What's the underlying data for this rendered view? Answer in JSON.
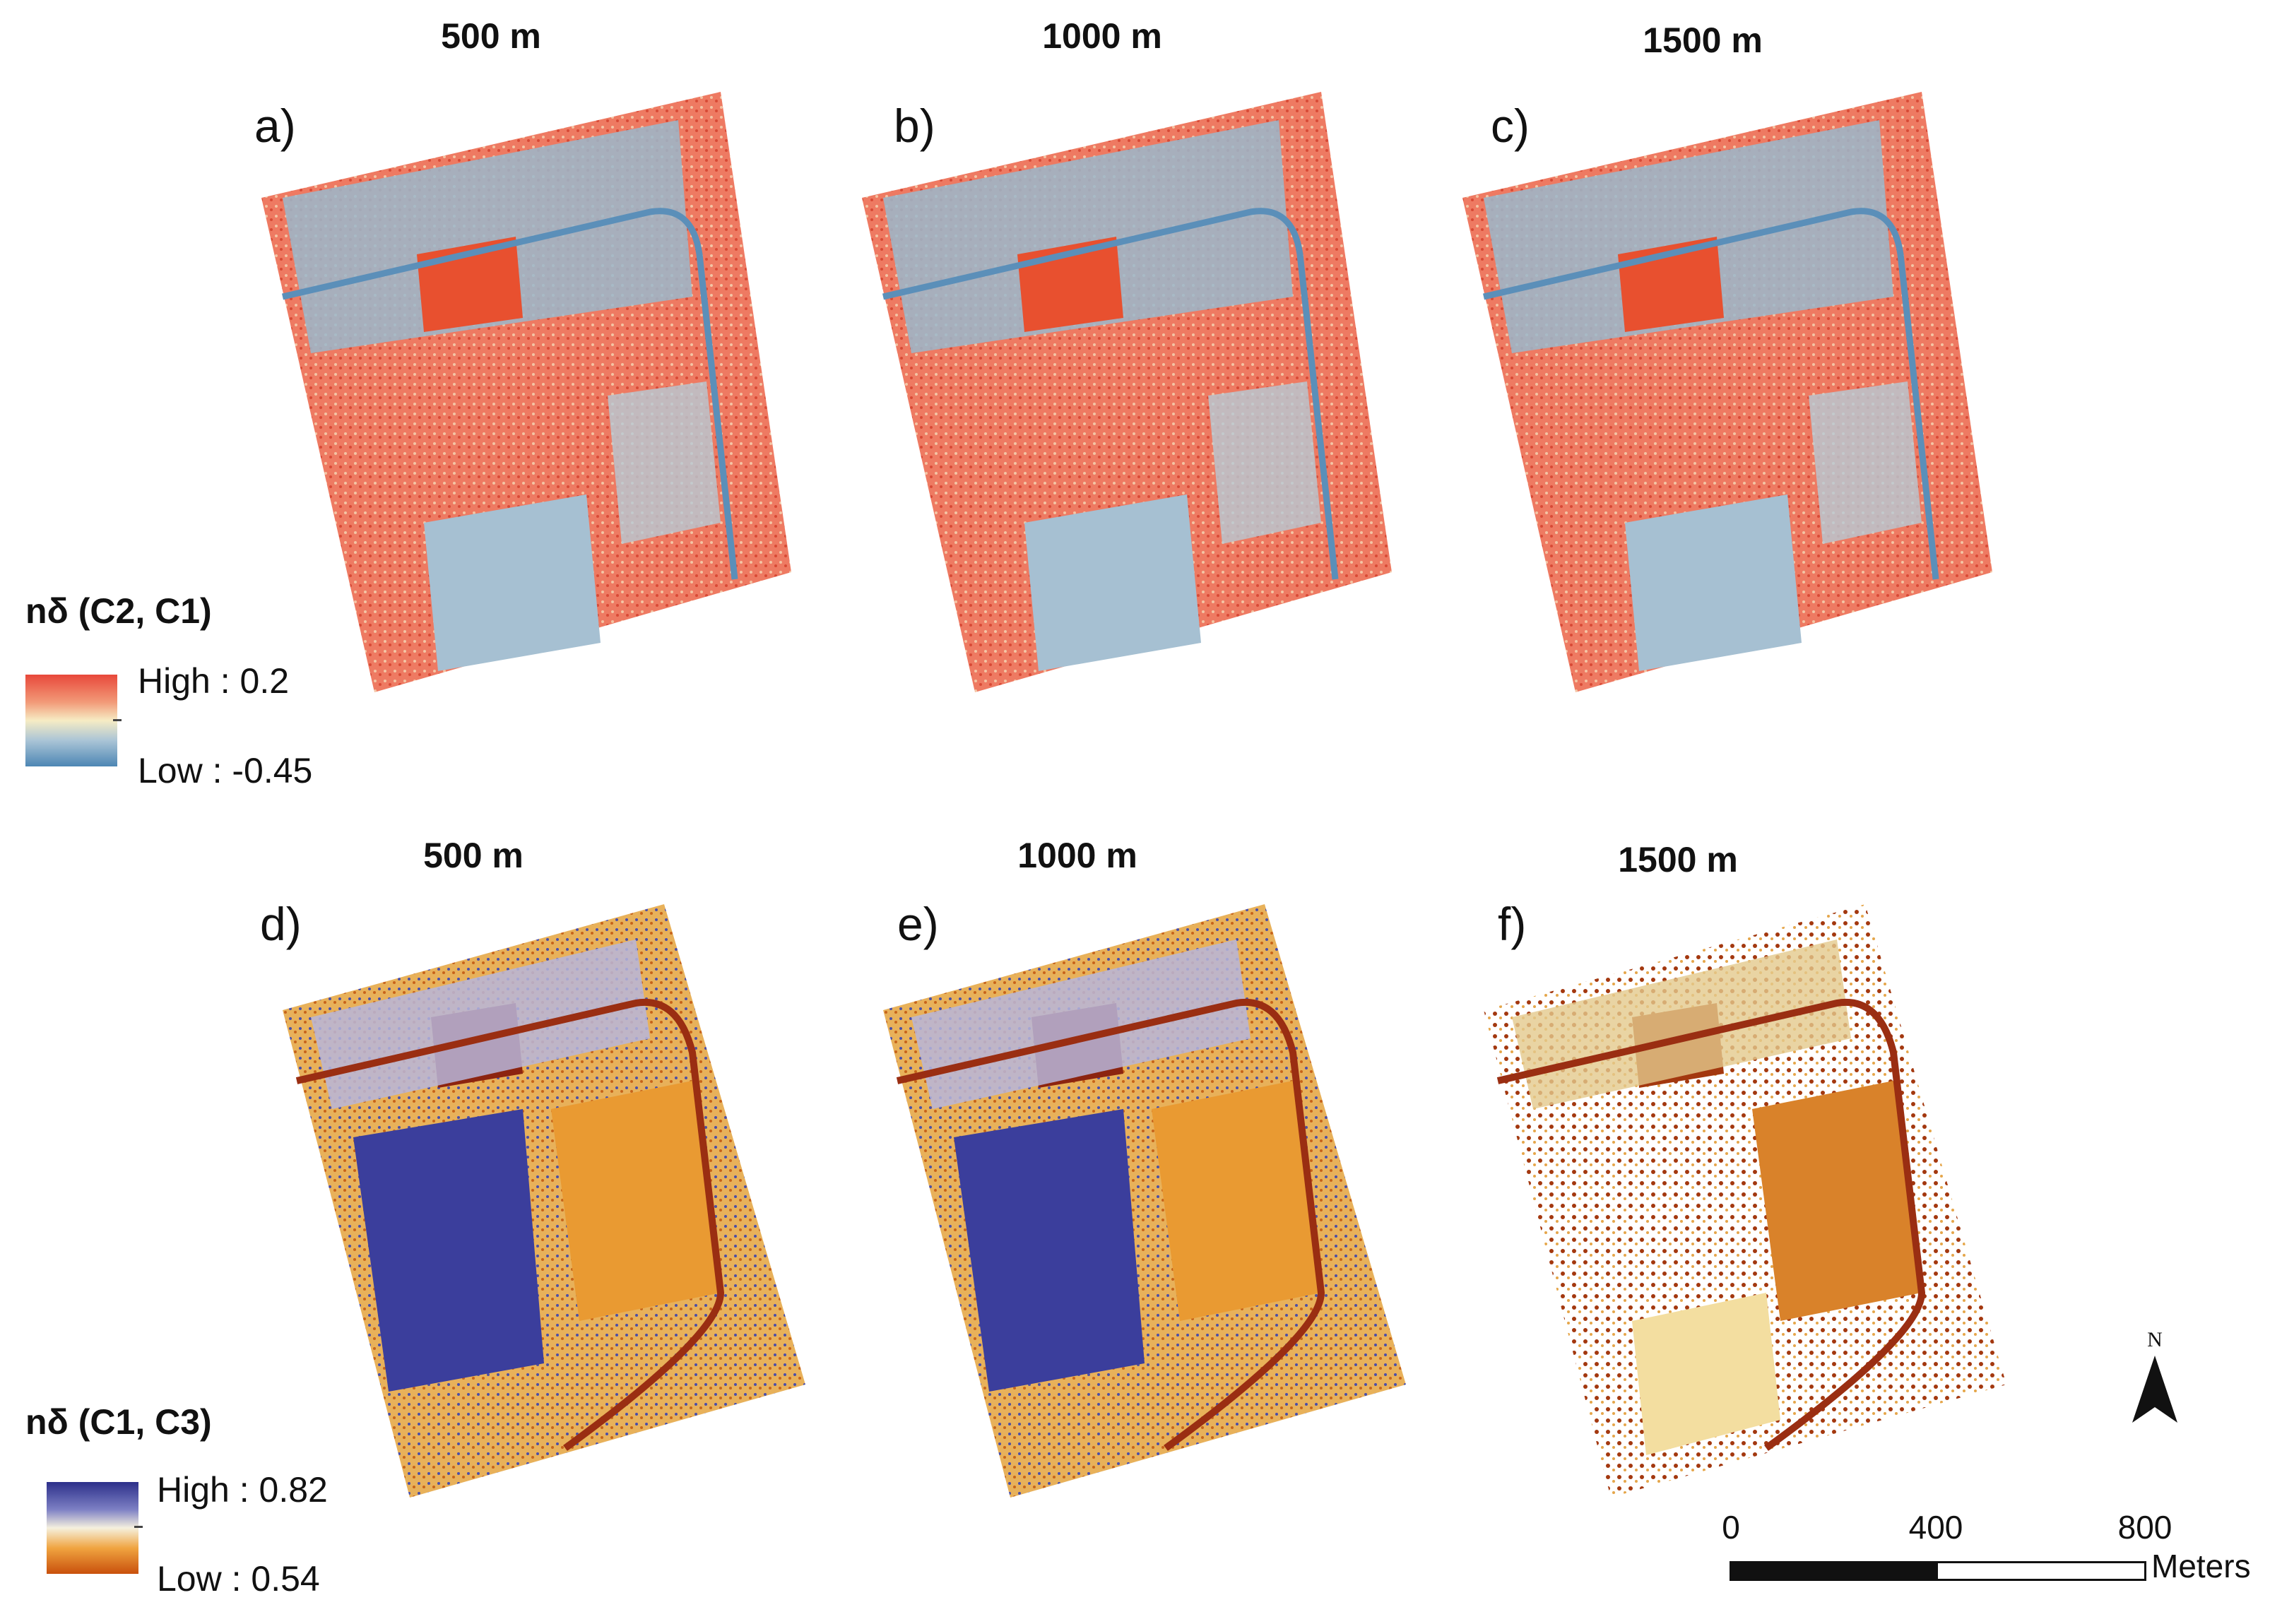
{
  "columns": [
    "500 m",
    "1000 m",
    "1500 m",
    "500 m",
    "1000 m",
    "1500 m"
  ],
  "panels": [
    "a)",
    "b)",
    "c)",
    "d)",
    "e)",
    "f)"
  ],
  "legend1": {
    "title": "nδ (C2, C1)",
    "high": "High : 0.2",
    "low": "Low : -0.45",
    "colors": {
      "high": "#e8483a",
      "mid": "#f6ecc4",
      "low": "#4d86b4"
    }
  },
  "legend2": {
    "title": "nδ (C1, C3)",
    "high": "High : 0.82",
    "low": "Low : 0.54",
    "colors": {
      "high": "#2c2f8a",
      "mid": "#f5f0de",
      "low": "#c9500c"
    }
  },
  "north": {
    "label": "N"
  },
  "scalebar": {
    "ticks": [
      "0",
      "400",
      "800"
    ],
    "unit": "Meters"
  }
}
